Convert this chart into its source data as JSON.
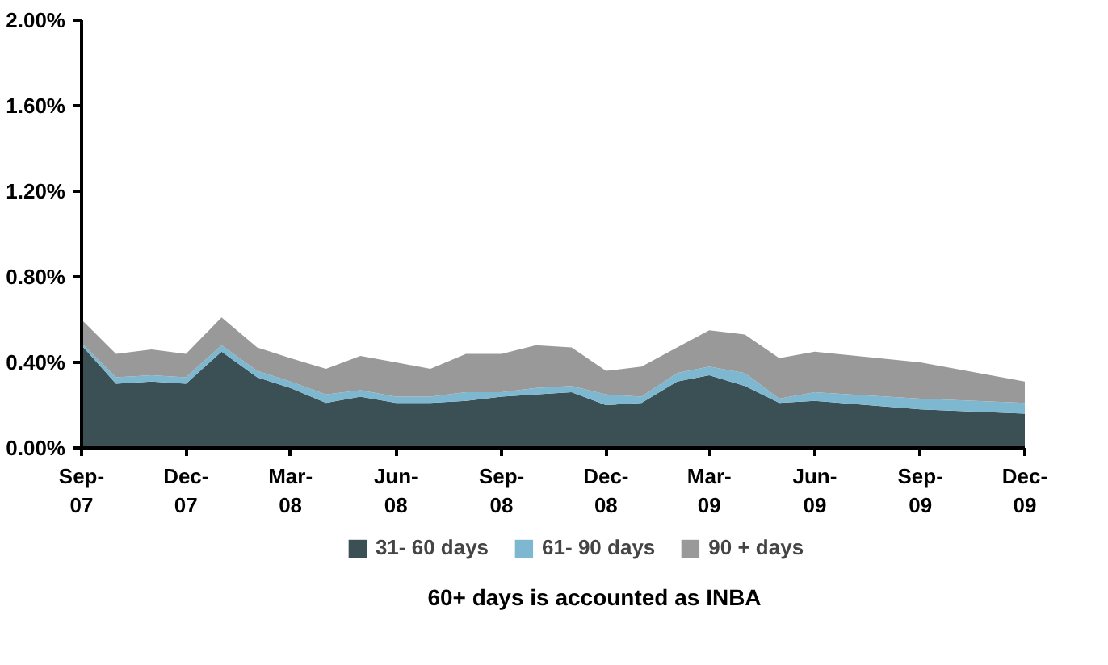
{
  "chart_data": {
    "type": "area",
    "stacked": true,
    "x": [
      "2007-09",
      "2007-10",
      "2007-11",
      "2007-12",
      "2008-01",
      "2008-02",
      "2008-03",
      "2008-04",
      "2008-05",
      "2008-06",
      "2008-07",
      "2008-08",
      "2008-09",
      "2008-10",
      "2008-11",
      "2008-12",
      "2009-01",
      "2009-02",
      "2009-03",
      "2009-04",
      "2009-05",
      "2009-06",
      "2009-09",
      "2009-12"
    ],
    "series": [
      {
        "name": "31- 60 days",
        "color": "#3b5054",
        "values": [
          0.48,
          0.3,
          0.31,
          0.3,
          0.45,
          0.33,
          0.28,
          0.21,
          0.24,
          0.21,
          0.21,
          0.22,
          0.24,
          0.25,
          0.26,
          0.2,
          0.21,
          0.31,
          0.34,
          0.29,
          0.21,
          0.22,
          0.18,
          0.16
        ]
      },
      {
        "name": "61- 90 days",
        "color": "#7db8d0",
        "values": [
          0.01,
          0.03,
          0.03,
          0.03,
          0.03,
          0.03,
          0.03,
          0.04,
          0.03,
          0.03,
          0.03,
          0.04,
          0.02,
          0.03,
          0.03,
          0.05,
          0.03,
          0.04,
          0.04,
          0.06,
          0.02,
          0.04,
          0.05,
          0.05
        ]
      },
      {
        "name": "90 + days",
        "color": "#999999",
        "values": [
          0.11,
          0.11,
          0.12,
          0.11,
          0.13,
          0.11,
          0.11,
          0.12,
          0.16,
          0.16,
          0.13,
          0.18,
          0.18,
          0.2,
          0.18,
          0.11,
          0.14,
          0.12,
          0.17,
          0.18,
          0.19,
          0.19,
          0.17,
          0.1
        ]
      }
    ],
    "ylim": [
      0,
      2.0
    ],
    "yticks": [
      {
        "value": 0,
        "label": "0.00%"
      },
      {
        "value": 0.4,
        "label": "0.40%"
      },
      {
        "value": 0.8,
        "label": "0.80%"
      },
      {
        "value": 1.2,
        "label": "1.20%"
      },
      {
        "value": 1.6,
        "label": "1.60%"
      },
      {
        "value": 2.0,
        "label": "2.00%"
      }
    ],
    "xlim": [
      "2007-09",
      "2009-12"
    ],
    "xticks": [
      {
        "value": "2007-09",
        "label": "Sep-\n07"
      },
      {
        "value": "2007-12",
        "label": "Dec-\n07"
      },
      {
        "value": "2008-03",
        "label": "Mar-\n08"
      },
      {
        "value": "2008-06",
        "label": "Jun-\n08"
      },
      {
        "value": "2008-09",
        "label": "Sep-\n08"
      },
      {
        "value": "2008-12",
        "label": "Dec-\n08"
      },
      {
        "value": "2009-03",
        "label": "Mar-\n09"
      },
      {
        "value": "2009-06",
        "label": "Jun-\n09"
      },
      {
        "value": "2009-09",
        "label": "Sep-\n09"
      },
      {
        "value": "2009-12",
        "label": "Dec-\n09"
      }
    ],
    "grid": false,
    "legend": "bottom",
    "annotations": [
      "60+ days is accounted as INBA"
    ]
  }
}
